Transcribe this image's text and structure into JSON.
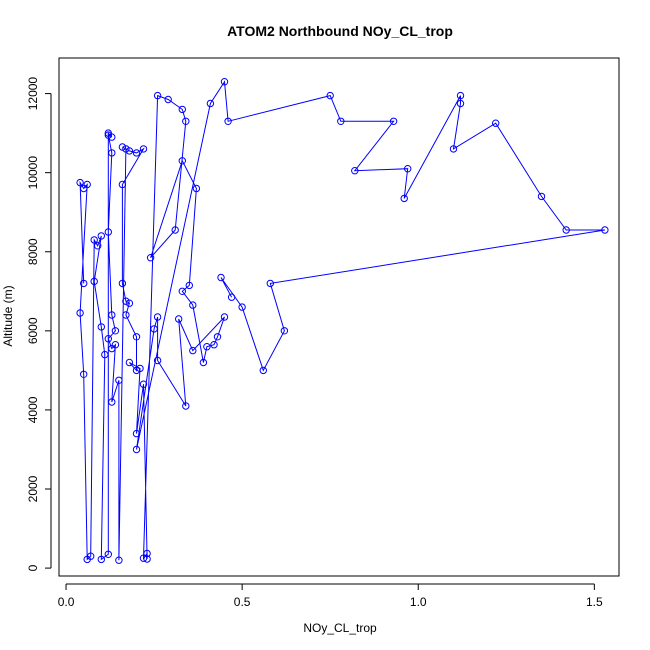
{
  "chart_data": {
    "type": "line",
    "title": "ATOM2 Northbound NOy_CL_trop",
    "xlabel": "NOy_CL_trop",
    "ylabel": "Altitude (m)",
    "xlim": [
      -0.02,
      1.57
    ],
    "ylim": [
      -200,
      12900
    ],
    "xticks": [
      0.0,
      0.5,
      1.0,
      1.5
    ],
    "xtick_labels": [
      "0.0",
      "0.5",
      "1.0",
      "1.5"
    ],
    "yticks": [
      0,
      2000,
      4000,
      6000,
      8000,
      10000,
      12000
    ],
    "ytick_labels": [
      "0",
      "2000",
      "4000",
      "6000",
      "8000",
      "10000",
      "12000"
    ],
    "grid": false,
    "legend": "none",
    "series": [
      {
        "color": "#0000ff",
        "marker": "open-circle",
        "points": [
          [
            0.05,
            7200
          ],
          [
            0.04,
            9750
          ],
          [
            0.05,
            9600
          ],
          [
            0.06,
            9700
          ],
          [
            0.04,
            6450
          ],
          [
            0.05,
            4900
          ],
          [
            0.06,
            220
          ],
          [
            0.07,
            300
          ],
          [
            0.08,
            8300
          ],
          [
            0.09,
            8150
          ],
          [
            0.1,
            8400
          ],
          [
            0.08,
            7250
          ],
          [
            0.1,
            6100
          ],
          [
            0.11,
            5400
          ],
          [
            0.1,
            220
          ],
          [
            0.12,
            350
          ],
          [
            0.12,
            11000
          ],
          [
            0.13,
            10900
          ],
          [
            0.12,
            10950
          ],
          [
            0.13,
            10500
          ],
          [
            0.12,
            8500
          ],
          [
            0.13,
            6400
          ],
          [
            0.14,
            6000
          ],
          [
            0.12,
            5800
          ],
          [
            0.13,
            5550
          ],
          [
            0.14,
            5650
          ],
          [
            0.13,
            4200
          ],
          [
            0.15,
            4750
          ],
          [
            0.15,
            200
          ],
          [
            0.17,
            10600
          ],
          [
            0.16,
            10650
          ],
          [
            0.18,
            10550
          ],
          [
            0.2,
            10500
          ],
          [
            0.22,
            10600
          ],
          [
            0.16,
            9700
          ],
          [
            0.16,
            7200
          ],
          [
            0.17,
            6750
          ],
          [
            0.18,
            6700
          ],
          [
            0.17,
            6400
          ],
          [
            0.2,
            5850
          ],
          [
            0.2,
            5000
          ],
          [
            0.18,
            5200
          ],
          [
            0.21,
            5050
          ],
          [
            0.2,
            3400
          ],
          [
            0.22,
            4650
          ],
          [
            0.23,
            230
          ],
          [
            0.23,
            370
          ],
          [
            0.22,
            250
          ],
          [
            0.26,
            11950
          ],
          [
            0.29,
            11850
          ],
          [
            0.33,
            11600
          ],
          [
            0.34,
            11300
          ],
          [
            0.31,
            8550
          ],
          [
            0.24,
            7850
          ],
          [
            0.33,
            10300
          ],
          [
            0.37,
            9600
          ],
          [
            0.35,
            7150
          ],
          [
            0.33,
            7000
          ],
          [
            0.36,
            6650
          ],
          [
            0.39,
            5200
          ],
          [
            0.4,
            5600
          ],
          [
            0.42,
            5650
          ],
          [
            0.43,
            5850
          ],
          [
            0.45,
            6350
          ],
          [
            0.36,
            5500
          ],
          [
            0.32,
            6300
          ],
          [
            0.34,
            4100
          ],
          [
            0.26,
            5250
          ],
          [
            0.26,
            6350
          ],
          [
            0.25,
            6050
          ],
          [
            0.2,
            3000
          ],
          [
            0.41,
            11750
          ],
          [
            0.45,
            12300
          ],
          [
            0.46,
            11300
          ],
          [
            0.75,
            11950
          ],
          [
            0.78,
            11300
          ],
          [
            0.93,
            11300
          ],
          [
            0.82,
            10050
          ],
          [
            0.97,
            10100
          ],
          [
            0.96,
            9350
          ],
          [
            1.12,
            11950
          ],
          [
            1.12,
            11750
          ],
          [
            1.1,
            10600
          ],
          [
            1.22,
            11250
          ],
          [
            1.35,
            9400
          ],
          [
            1.42,
            8550
          ],
          [
            1.53,
            8550
          ],
          [
            0.58,
            7200
          ],
          [
            0.62,
            6000
          ],
          [
            0.56,
            5000
          ],
          [
            0.5,
            6600
          ],
          [
            0.44,
            7350
          ],
          [
            0.47,
            6850
          ]
        ]
      }
    ]
  }
}
